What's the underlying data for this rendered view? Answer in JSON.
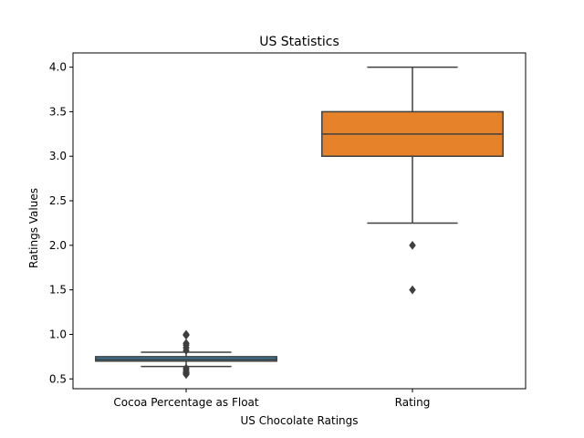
{
  "chart_data": {
    "type": "box",
    "title": "US Statistics",
    "xlabel": "US Chocolate Ratings",
    "ylabel": "Ratings Values",
    "ylim": [
      0.39,
      4.16
    ],
    "yticks": [
      "0.5",
      "1.0",
      "1.5",
      "2.0",
      "2.5",
      "3.0",
      "3.5",
      "4.0"
    ],
    "grid": false,
    "categories": [
      "Cocoa Percentage as Float",
      "Rating"
    ],
    "boxes": [
      {
        "category": "Cocoa Percentage as Float",
        "color": "#3a7ea1",
        "whisker_low": 0.64,
        "q1": 0.7,
        "median": 0.72,
        "q3": 0.75,
        "whisker_high": 0.8,
        "outliers": [
          0.55,
          0.56,
          0.57,
          0.58,
          0.6,
          0.62,
          0.82,
          0.85,
          0.88,
          0.9,
          0.99,
          1.0
        ]
      },
      {
        "category": "Rating",
        "color": "#e6832a",
        "whisker_low": 2.25,
        "q1": 3.0,
        "median": 3.25,
        "q3": 3.5,
        "whisker_high": 4.0,
        "outliers": [
          1.5,
          2.0
        ]
      }
    ],
    "colors": {
      "edge": "#3f3f3f",
      "axis": "#000000"
    }
  }
}
